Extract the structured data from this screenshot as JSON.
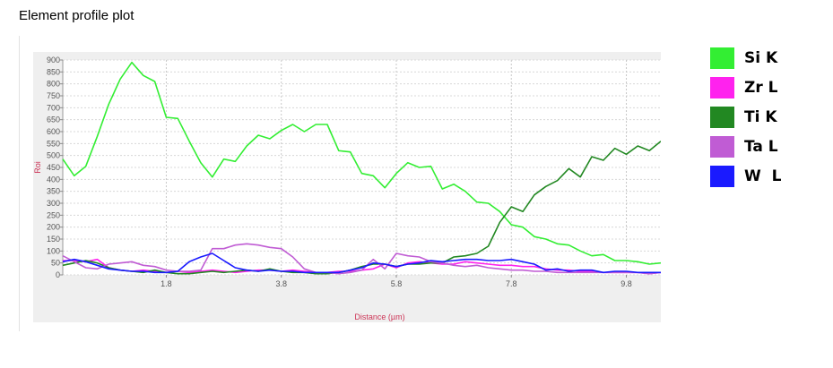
{
  "page_title": "Element profile plot",
  "chart_data": {
    "type": "line",
    "title": "Element profile plot",
    "xlabel": "Distance (µm)",
    "ylabel": "Roi",
    "xlim": [
      0,
      10.4
    ],
    "ylim": [
      0,
      900
    ],
    "x_ticks": [
      1.8,
      3.8,
      5.8,
      7.8,
      9.8
    ],
    "x_tick_labels": [
      "1.8",
      "3.8",
      "5.8",
      "7.8",
      "9.8"
    ],
    "y_ticks": [
      0,
      50,
      100,
      150,
      200,
      250,
      300,
      350,
      400,
      450,
      500,
      550,
      600,
      650,
      700,
      750,
      800,
      850,
      900
    ],
    "y_tick_labels": [
      "0",
      "50",
      "100",
      "150",
      "200",
      "250",
      "300",
      "350",
      "400",
      "450",
      "500",
      "550",
      "600",
      "650",
      "700",
      "750",
      "800",
      "850",
      "900"
    ],
    "grid": true,
    "legend_position": "right",
    "series": [
      {
        "name": "Si K",
        "color": "#33ee33",
        "x": [
          0.0,
          0.2,
          0.4,
          0.6,
          0.8,
          1.0,
          1.2,
          1.4,
          1.6,
          1.8,
          2.0,
          2.2,
          2.4,
          2.6,
          2.8,
          3.0,
          3.2,
          3.4,
          3.6,
          3.8,
          4.0,
          4.2,
          4.4,
          4.6,
          4.8,
          5.0,
          5.2,
          5.4,
          5.6,
          5.8,
          6.0,
          6.2,
          6.4,
          6.6,
          6.8,
          7.0,
          7.2,
          7.4,
          7.6,
          7.8,
          8.0,
          8.2,
          8.4,
          8.6,
          8.8,
          9.0,
          9.2,
          9.4,
          9.6,
          9.8,
          10.0,
          10.2,
          10.4
        ],
        "values": [
          485,
          415,
          455,
          580,
          715,
          820,
          890,
          835,
          810,
          660,
          655,
          560,
          470,
          410,
          485,
          475,
          540,
          585,
          570,
          605,
          630,
          600,
          630,
          630,
          520,
          515,
          425,
          415,
          365,
          425,
          470,
          450,
          455,
          360,
          380,
          350,
          305,
          300,
          265,
          210,
          200,
          160,
          150,
          130,
          125,
          100,
          80,
          85,
          60,
          60,
          55,
          45,
          50
        ]
      },
      {
        "name": "Zr L",
        "color": "#ff22ee",
        "x": [
          0.0,
          0.2,
          0.4,
          0.6,
          0.8,
          1.0,
          1.2,
          1.4,
          1.6,
          1.8,
          2.0,
          2.2,
          2.4,
          2.6,
          2.8,
          3.0,
          3.2,
          3.4,
          3.6,
          3.8,
          4.0,
          4.2,
          4.4,
          4.6,
          4.8,
          5.0,
          5.2,
          5.4,
          5.6,
          5.8,
          6.0,
          6.2,
          6.4,
          6.6,
          6.8,
          7.0,
          7.2,
          7.4,
          7.6,
          7.8,
          8.0,
          8.2,
          8.4,
          8.6,
          8.8,
          9.0,
          9.2,
          9.4,
          9.6,
          9.8,
          10.0,
          10.2,
          10.4
        ],
        "values": [
          60,
          60,
          55,
          65,
          30,
          20,
          15,
          20,
          15,
          10,
          15,
          10,
          15,
          20,
          15,
          10,
          15,
          20,
          20,
          15,
          20,
          15,
          10,
          10,
          15,
          15,
          20,
          25,
          45,
          30,
          50,
          55,
          50,
          45,
          45,
          55,
          50,
          45,
          40,
          40,
          35,
          35,
          25,
          20,
          20,
          15,
          15,
          10,
          10,
          10,
          10,
          5,
          10
        ]
      },
      {
        "name": "Ti K",
        "color": "#228822",
        "x": [
          0.0,
          0.2,
          0.4,
          0.6,
          0.8,
          1.0,
          1.2,
          1.4,
          1.6,
          1.8,
          2.0,
          2.2,
          2.4,
          2.6,
          2.8,
          3.0,
          3.2,
          3.4,
          3.6,
          3.8,
          4.0,
          4.2,
          4.4,
          4.6,
          4.8,
          5.0,
          5.2,
          5.4,
          5.6,
          5.8,
          6.0,
          6.2,
          6.4,
          6.6,
          6.8,
          7.0,
          7.2,
          7.4,
          7.6,
          7.8,
          8.0,
          8.2,
          8.4,
          8.6,
          8.8,
          9.0,
          9.2,
          9.4,
          9.6,
          9.8,
          10.0,
          10.2,
          10.4
        ],
        "values": [
          40,
          50,
          60,
          50,
          30,
          20,
          15,
          10,
          20,
          10,
          5,
          5,
          10,
          15,
          10,
          15,
          20,
          15,
          25,
          15,
          10,
          10,
          5,
          5,
          10,
          20,
          35,
          45,
          45,
          35,
          45,
          45,
          50,
          50,
          75,
          80,
          90,
          120,
          220,
          285,
          265,
          335,
          370,
          395,
          445,
          410,
          495,
          480,
          530,
          505,
          540,
          520,
          560
        ]
      },
      {
        "name": "Ta L",
        "color": "#c05cd4",
        "x": [
          0.0,
          0.2,
          0.4,
          0.6,
          0.8,
          1.0,
          1.2,
          1.4,
          1.6,
          1.8,
          2.0,
          2.2,
          2.4,
          2.6,
          2.8,
          3.0,
          3.2,
          3.4,
          3.6,
          3.8,
          4.0,
          4.2,
          4.4,
          4.6,
          4.8,
          5.0,
          5.2,
          5.4,
          5.6,
          5.8,
          6.0,
          6.2,
          6.4,
          6.6,
          6.8,
          7.0,
          7.2,
          7.4,
          7.6,
          7.8,
          8.0,
          8.2,
          8.4,
          8.6,
          8.8,
          9.0,
          9.2,
          9.4,
          9.6,
          9.8,
          10.0,
          10.2,
          10.4
        ],
        "values": [
          80,
          55,
          30,
          25,
          45,
          50,
          55,
          40,
          35,
          20,
          15,
          15,
          20,
          110,
          110,
          125,
          130,
          125,
          115,
          110,
          75,
          25,
          10,
          10,
          5,
          10,
          20,
          65,
          25,
          90,
          80,
          75,
          55,
          50,
          40,
          35,
          40,
          30,
          25,
          20,
          20,
          15,
          15,
          10,
          10,
          10,
          10,
          10,
          10,
          10,
          10,
          5,
          10
        ]
      },
      {
        "name": "W  L",
        "color": "#1a1aff",
        "x": [
          0.0,
          0.2,
          0.4,
          0.6,
          0.8,
          1.0,
          1.2,
          1.4,
          1.6,
          1.8,
          2.0,
          2.2,
          2.4,
          2.6,
          2.8,
          3.0,
          3.2,
          3.4,
          3.6,
          3.8,
          4.0,
          4.2,
          4.4,
          4.6,
          4.8,
          5.0,
          5.2,
          5.4,
          5.6,
          5.8,
          6.0,
          6.2,
          6.4,
          6.6,
          6.8,
          7.0,
          7.2,
          7.4,
          7.6,
          7.8,
          8.0,
          8.2,
          8.4,
          8.6,
          8.8,
          9.0,
          9.2,
          9.4,
          9.6,
          9.8,
          10.0,
          10.2,
          10.4
        ],
        "values": [
          55,
          65,
          55,
          40,
          25,
          20,
          15,
          15,
          10,
          10,
          15,
          55,
          75,
          90,
          60,
          30,
          20,
          15,
          20,
          15,
          15,
          10,
          10,
          10,
          10,
          20,
          30,
          50,
          45,
          35,
          45,
          50,
          60,
          55,
          60,
          65,
          65,
          60,
          60,
          65,
          55,
          45,
          20,
          25,
          15,
          20,
          20,
          10,
          15,
          15,
          10,
          10,
          10
        ]
      }
    ]
  }
}
